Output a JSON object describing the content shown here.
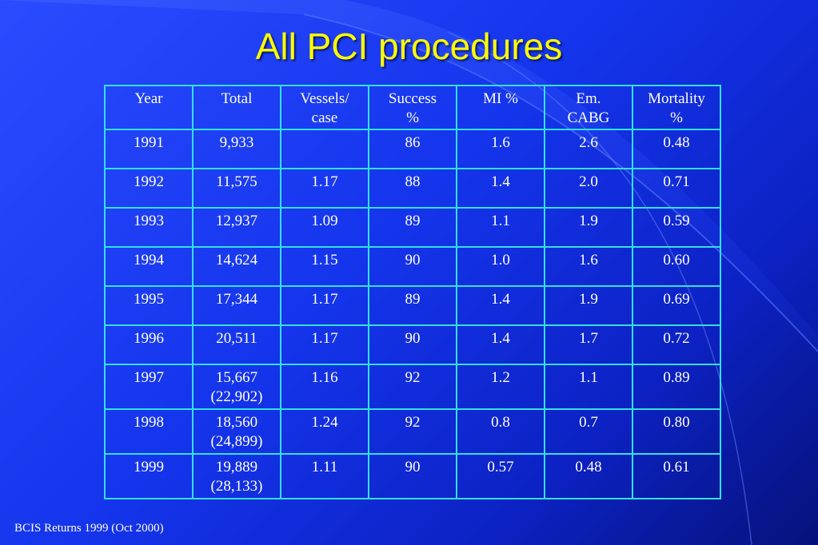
{
  "slide": {
    "title": "All PCI procedures",
    "source": "BCIS Returns 1999 (Oct 2000)",
    "colors": {
      "background": "#1a3cf0",
      "title": "#ffff00",
      "table_border": "#33e0e8",
      "text": "#ffffff"
    }
  },
  "table": {
    "headers": [
      {
        "line1": "Year",
        "line2": ""
      },
      {
        "line1": "Total",
        "line2": ""
      },
      {
        "line1": "Vessels/",
        "line2": "case"
      },
      {
        "line1": "Success",
        "line2": "%"
      },
      {
        "line1": "MI %",
        "line2": ""
      },
      {
        "line1": "Em.",
        "line2": "CABG"
      },
      {
        "line1": "Mortality",
        "line2": "%"
      }
    ],
    "rows": [
      {
        "year": "1991",
        "total": "9,933",
        "total2": "",
        "vessels": "",
        "success": "86",
        "mi": "1.6",
        "cabg": "2.6",
        "mortality": "0.48"
      },
      {
        "year": "1992",
        "total": "11,575",
        "total2": "",
        "vessels": "1.17",
        "success": "88",
        "mi": "1.4",
        "cabg": "2.0",
        "mortality": "0.71"
      },
      {
        "year": "1993",
        "total": "12,937",
        "total2": "",
        "vessels": "1.09",
        "success": "89",
        "mi": "1.1",
        "cabg": "1.9",
        "mortality": "0.59"
      },
      {
        "year": "1994",
        "total": "14,624",
        "total2": "",
        "vessels": "1.15",
        "success": "90",
        "mi": "1.0",
        "cabg": "1.6",
        "mortality": "0.60"
      },
      {
        "year": "1995",
        "total": "17,344",
        "total2": "",
        "vessels": "1.17",
        "success": "89",
        "mi": "1.4",
        "cabg": "1.9",
        "mortality": "0.69"
      },
      {
        "year": "1996",
        "total": "20,511",
        "total2": "",
        "vessels": "1.17",
        "success": "90",
        "mi": "1.4",
        "cabg": "1.7",
        "mortality": "0.72"
      },
      {
        "year": "1997",
        "total": "15,667",
        "total2": "(22,902)",
        "vessels": "1.16",
        "success": "92",
        "mi": "1.2",
        "cabg": "1.1",
        "mortality": "0.89"
      },
      {
        "year": "1998",
        "total": "18,560",
        "total2": "(24,899)",
        "vessels": "1.24",
        "success": "92",
        "mi": "0.8",
        "cabg": "0.7",
        "mortality": "0.80"
      },
      {
        "year": "1999",
        "total": "19,889",
        "total2": "(28,133)",
        "vessels": "1.11",
        "success": "90",
        "mi": "0.57",
        "cabg": "0.48",
        "mortality": "0.61"
      }
    ]
  }
}
